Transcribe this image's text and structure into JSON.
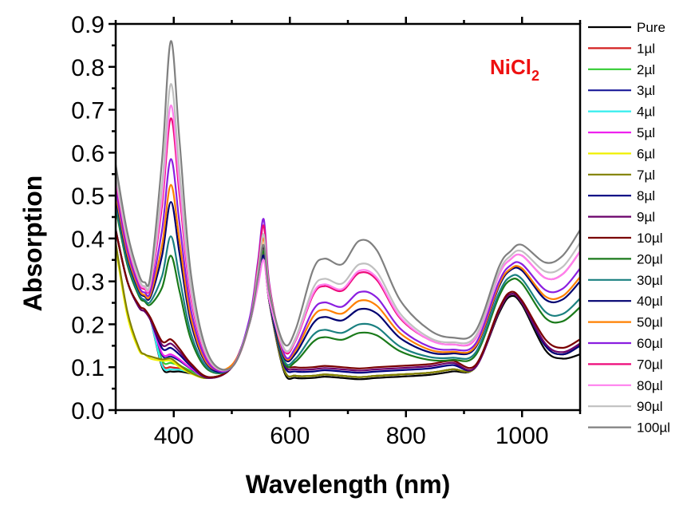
{
  "chart_data": {
    "type": "line",
    "title": "",
    "xlabel": "Wavelength (nm)",
    "ylabel": "Absorption",
    "xlim": [
      300,
      1100
    ],
    "ylim": [
      0.0,
      0.9
    ],
    "x_ticks": [
      "400",
      "600",
      "800",
      "1000"
    ],
    "y_ticks": [
      "0.0",
      "0.1",
      "0.2",
      "0.3",
      "0.4",
      "0.5",
      "0.6",
      "0.7",
      "0.8",
      "0.9"
    ],
    "grid": false,
    "legend_position": "right-outside",
    "annotation": {
      "text": "NiCl",
      "subscript": "2",
      "color": "#ee1111"
    },
    "x": [
      300,
      320,
      340,
      350,
      360,
      380,
      395,
      410,
      430,
      460,
      500,
      530,
      545,
      555,
      565,
      590,
      610,
      640,
      660,
      690,
      720,
      750,
      790,
      840,
      880,
      920,
      960,
      980,
      1000,
      1040,
      1070,
      1100
    ],
    "series": [
      {
        "name": "Pure",
        "color": "#000000",
        "values": [
          0.42,
          0.3,
          0.24,
          0.23,
          0.21,
          0.1,
          0.09,
          0.09,
          0.085,
          0.075,
          0.1,
          0.2,
          0.3,
          0.38,
          0.25,
          0.09,
          0.075,
          0.075,
          0.078,
          0.075,
          0.072,
          0.075,
          0.078,
          0.082,
          0.09,
          0.1,
          0.225,
          0.265,
          0.245,
          0.14,
          0.12,
          0.13
        ]
      },
      {
        "name": "1µl",
        "color": "#d42020",
        "values": [
          0.42,
          0.3,
          0.24,
          0.23,
          0.21,
          0.108,
          0.1,
          0.097,
          0.088,
          0.075,
          0.1,
          0.2,
          0.3,
          0.37,
          0.25,
          0.095,
          0.08,
          0.08,
          0.083,
          0.08,
          0.077,
          0.08,
          0.083,
          0.087,
          0.095,
          0.1,
          0.23,
          0.27,
          0.25,
          0.15,
          0.13,
          0.15
        ]
      },
      {
        "name": "2µl",
        "color": "#33cc33",
        "values": [
          0.42,
          0.3,
          0.24,
          0.23,
          0.21,
          0.116,
          0.11,
          0.104,
          0.091,
          0.075,
          0.1,
          0.2,
          0.3,
          0.37,
          0.25,
          0.095,
          0.08,
          0.08,
          0.083,
          0.08,
          0.077,
          0.08,
          0.083,
          0.087,
          0.095,
          0.1,
          0.23,
          0.27,
          0.25,
          0.15,
          0.13,
          0.15
        ]
      },
      {
        "name": "3µl",
        "color": "#1a1a99",
        "values": [
          0.42,
          0.3,
          0.24,
          0.23,
          0.21,
          0.128,
          0.125,
          0.115,
          0.096,
          0.075,
          0.1,
          0.2,
          0.3,
          0.37,
          0.25,
          0.095,
          0.08,
          0.08,
          0.083,
          0.08,
          0.077,
          0.08,
          0.083,
          0.087,
          0.095,
          0.1,
          0.23,
          0.27,
          0.25,
          0.15,
          0.13,
          0.15
        ]
      },
      {
        "name": "4µl",
        "color": "#33eeee",
        "values": [
          0.42,
          0.3,
          0.24,
          0.23,
          0.21,
          0.104,
          0.095,
          0.094,
          0.087,
          0.075,
          0.1,
          0.2,
          0.3,
          0.37,
          0.25,
          0.095,
          0.08,
          0.08,
          0.083,
          0.08,
          0.077,
          0.08,
          0.083,
          0.087,
          0.095,
          0.1,
          0.23,
          0.27,
          0.25,
          0.15,
          0.13,
          0.15
        ]
      },
      {
        "name": "5µl",
        "color": "#ee22ee",
        "values": [
          0.42,
          0.3,
          0.24,
          0.23,
          0.21,
          0.132,
          0.13,
          0.118,
          0.097,
          0.075,
          0.1,
          0.2,
          0.3,
          0.37,
          0.25,
          0.095,
          0.08,
          0.08,
          0.083,
          0.08,
          0.077,
          0.08,
          0.083,
          0.087,
          0.095,
          0.1,
          0.23,
          0.27,
          0.25,
          0.15,
          0.13,
          0.15
        ]
      },
      {
        "name": "6µl",
        "color": "#f0f000",
        "values": [
          0.38,
          0.22,
          0.14,
          0.13,
          0.12,
          0.115,
          0.115,
          0.1,
          0.085,
          0.075,
          0.1,
          0.2,
          0.3,
          0.37,
          0.25,
          0.095,
          0.08,
          0.08,
          0.083,
          0.08,
          0.077,
          0.08,
          0.083,
          0.087,
          0.095,
          0.1,
          0.23,
          0.27,
          0.25,
          0.15,
          0.13,
          0.15
        ]
      },
      {
        "name": "7µl",
        "color": "#808000",
        "values": [
          0.39,
          0.23,
          0.145,
          0.13,
          0.125,
          0.118,
          0.12,
          0.105,
          0.087,
          0.075,
          0.1,
          0.2,
          0.3,
          0.37,
          0.25,
          0.095,
          0.08,
          0.08,
          0.083,
          0.08,
          0.077,
          0.08,
          0.083,
          0.087,
          0.095,
          0.1,
          0.23,
          0.27,
          0.25,
          0.15,
          0.13,
          0.15
        ]
      },
      {
        "name": "8µl",
        "color": "#000080",
        "values": [
          0.42,
          0.3,
          0.24,
          0.23,
          0.21,
          0.144,
          0.145,
          0.129,
          0.102,
          0.075,
          0.1,
          0.2,
          0.3,
          0.37,
          0.25,
          0.105,
          0.09,
          0.09,
          0.093,
          0.09,
          0.087,
          0.09,
          0.093,
          0.097,
          0.105,
          0.1,
          0.23,
          0.27,
          0.25,
          0.15,
          0.13,
          0.15
        ]
      },
      {
        "name": "9µl",
        "color": "#6a006a",
        "values": [
          0.42,
          0.3,
          0.24,
          0.23,
          0.21,
          0.152,
          0.155,
          0.136,
          0.105,
          0.075,
          0.1,
          0.2,
          0.3,
          0.37,
          0.25,
          0.11,
          0.095,
          0.095,
          0.098,
          0.095,
          0.092,
          0.095,
          0.098,
          0.102,
          0.11,
          0.1,
          0.23,
          0.27,
          0.25,
          0.155,
          0.135,
          0.155
        ]
      },
      {
        "name": "10µl",
        "color": "#7a0000",
        "values": [
          0.42,
          0.3,
          0.245,
          0.235,
          0.215,
          0.16,
          0.165,
          0.143,
          0.108,
          0.077,
          0.1,
          0.2,
          0.3,
          0.36,
          0.25,
          0.115,
          0.1,
          0.1,
          0.103,
          0.1,
          0.097,
          0.1,
          0.103,
          0.107,
          0.115,
          0.105,
          0.235,
          0.275,
          0.255,
          0.165,
          0.145,
          0.165
        ]
      },
      {
        "name": "20µl",
        "color": "#1a7a1a",
        "values": [
          0.472,
          0.339,
          0.266,
          0.253,
          0.246,
          0.286,
          0.36,
          0.277,
          0.163,
          0.093,
          0.1,
          0.2,
          0.3,
          0.37,
          0.255,
          0.112,
          0.113,
          0.159,
          0.17,
          0.164,
          0.18,
          0.174,
          0.137,
          0.117,
          0.117,
          0.128,
          0.264,
          0.303,
          0.295,
          0.215,
          0.207,
          0.24
        ]
      },
      {
        "name": "30µl",
        "color": "#1a8080",
        "values": [
          0.481,
          0.346,
          0.271,
          0.257,
          0.253,
          0.313,
          0.405,
          0.309,
          0.177,
          0.096,
          0.1,
          0.2,
          0.294,
          0.36,
          0.252,
          0.116,
          0.12,
          0.175,
          0.187,
          0.18,
          0.2,
          0.193,
          0.148,
          0.124,
          0.122,
          0.134,
          0.272,
          0.311,
          0.305,
          0.229,
          0.224,
          0.26
        ]
      },
      {
        "name": "40µl",
        "color": "#000070",
        "values": [
          0.497,
          0.358,
          0.279,
          0.265,
          0.264,
          0.361,
          0.485,
          0.365,
          0.201,
          0.102,
          0.1,
          0.2,
          0.294,
          0.36,
          0.254,
          0.123,
          0.132,
          0.202,
          0.217,
          0.209,
          0.235,
          0.225,
          0.168,
          0.135,
          0.132,
          0.146,
          0.287,
          0.326,
          0.325,
          0.258,
          0.258,
          0.3
        ]
      },
      {
        "name": "50µl",
        "color": "#ff8000",
        "values": [
          0.505,
          0.364,
          0.283,
          0.268,
          0.27,
          0.385,
          0.525,
          0.393,
          0.213,
          0.105,
          0.105,
          0.2,
          0.318,
          0.4,
          0.271,
          0.127,
          0.139,
          0.218,
          0.234,
          0.225,
          0.255,
          0.243,
          0.179,
          0.141,
          0.136,
          0.149,
          0.291,
          0.329,
          0.33,
          0.265,
          0.266,
          0.31
        ]
      },
      {
        "name": "60µl",
        "color": "#8a1ee0",
        "values": [
          0.517,
          0.373,
          0.289,
          0.274,
          0.278,
          0.421,
          0.585,
          0.435,
          0.231,
          0.109,
          0.1,
          0.21,
          0.345,
          0.445,
          0.29,
          0.131,
          0.146,
          0.233,
          0.251,
          0.241,
          0.275,
          0.262,
          0.19,
          0.148,
          0.141,
          0.155,
          0.298,
          0.337,
          0.34,
          0.28,
          0.283,
          0.33
        ]
      },
      {
        "name": "70µl",
        "color": "#ee0a7a",
        "values": [
          0.536,
          0.387,
          0.298,
          0.282,
          0.291,
          0.478,
          0.68,
          0.501,
          0.259,
          0.116,
          0.1,
          0.2,
          0.336,
          0.43,
          0.286,
          0.14,
          0.162,
          0.268,
          0.289,
          0.278,
          0.32,
          0.303,
          0.214,
          0.164,
          0.153,
          0.167,
          0.314,
          0.351,
          0.36,
          0.308,
          0.317,
          0.37
        ]
      },
      {
        "name": "80µl",
        "color": "#ff80ee",
        "values": [
          0.542,
          0.392,
          0.301,
          0.285,
          0.295,
          0.496,
          0.71,
          0.522,
          0.268,
          0.118,
          0.1,
          0.2,
          0.288,
          0.35,
          0.255,
          0.141,
          0.164,
          0.272,
          0.293,
          0.282,
          0.325,
          0.308,
          0.217,
          0.164,
          0.153,
          0.168,
          0.314,
          0.351,
          0.36,
          0.308,
          0.317,
          0.37
        ]
      },
      {
        "name": "90µl",
        "color": "#c0c0c0",
        "values": [
          0.552,
          0.399,
          0.306,
          0.289,
          0.302,
          0.526,
          0.76,
          0.557,
          0.283,
          0.121,
          0.1,
          0.2,
          0.324,
          0.41,
          0.279,
          0.144,
          0.169,
          0.284,
          0.306,
          0.295,
          0.34,
          0.322,
          0.225,
          0.169,
          0.158,
          0.173,
          0.321,
          0.359,
          0.37,
          0.323,
          0.334,
          0.39
        ]
      },
      {
        "name": "100µl",
        "color": "#808080",
        "values": [
          0.572,
          0.414,
          0.316,
          0.298,
          0.316,
          0.586,
          0.86,
          0.627,
          0.313,
          0.128,
          0.1,
          0.2,
          0.309,
          0.385,
          0.272,
          0.155,
          0.188,
          0.327,
          0.353,
          0.34,
          0.395,
          0.372,
          0.256,
          0.187,
          0.169,
          0.184,
          0.333,
          0.37,
          0.385,
          0.344,
          0.36,
          0.42
        ]
      }
    ]
  }
}
